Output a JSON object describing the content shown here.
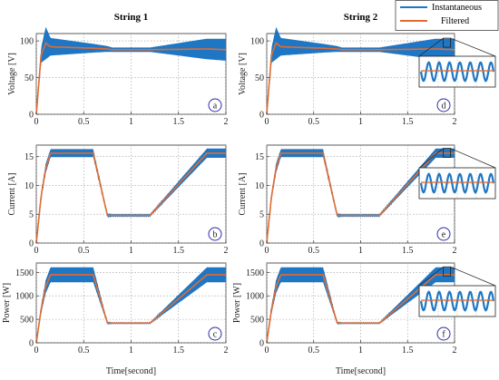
{
  "chart_data": {
    "type": "line",
    "x": [
      0,
      0.05,
      0.1,
      0.15,
      0.6,
      0.75,
      0.8,
      1.2,
      1.8,
      2.0
    ],
    "legend": {
      "placement": "top-right",
      "entries": [
        {
          "name": "Instantaneous",
          "color": "#1f77c4"
        },
        {
          "name": "Filtered",
          "color": "#e36b2f"
        }
      ]
    },
    "columns": [
      {
        "title": "String 1"
      },
      {
        "title": "String  2"
      }
    ],
    "xlabel": "Time[second]",
    "xlim": [
      0,
      2
    ],
    "xticks": [
      "0",
      "0.5",
      "1",
      "1.5",
      "2"
    ],
    "grid": true,
    "rows": [
      {
        "ylabel": "Voltage [V]",
        "ylim": [
          0,
          110
        ],
        "yticks": [
          0,
          50,
          100
        ],
        "filtered": [
          0,
          80,
          97,
          92,
          90,
          89,
          88,
          88,
          89,
          88
        ],
        "band_half": [
          0,
          10,
          22,
          12,
          6,
          4,
          3,
          3,
          14,
          15
        ],
        "panel_labels": [
          "a",
          "d"
        ]
      },
      {
        "ylabel": "Current [A]",
        "ylim": [
          0,
          17
        ],
        "yticks": [
          0,
          5,
          10,
          15
        ],
        "filtered": [
          0,
          8,
          13,
          15.6,
          15.6,
          4.8,
          4.8,
          4.8,
          15.6,
          15.6
        ],
        "band_half": [
          0,
          0.6,
          0.8,
          0.7,
          0.7,
          0.3,
          0.2,
          0.2,
          0.8,
          0.8
        ],
        "panel_labels": [
          "b",
          "e"
        ]
      },
      {
        "ylabel": "Power [W]",
        "ylim": [
          0,
          1700
        ],
        "yticks": [
          0,
          500,
          1000,
          1500
        ],
        "filtered": [
          0,
          700,
          1200,
          1450,
          1450,
          420,
          420,
          420,
          1450,
          1450
        ],
        "band_half": [
          0,
          80,
          140,
          160,
          160,
          25,
          15,
          15,
          160,
          160
        ],
        "panel_labels": [
          "c",
          "f"
        ]
      }
    ]
  }
}
